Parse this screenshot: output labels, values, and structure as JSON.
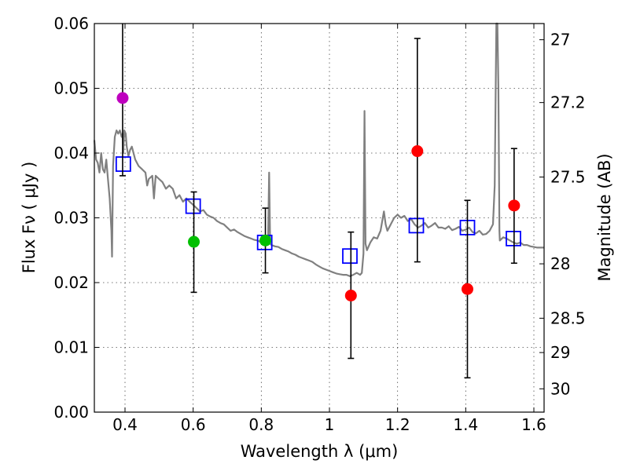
{
  "chart_data": {
    "type": "scatter",
    "title": "",
    "xlabel": "Wavelength  λ (μm)",
    "ylabel": "Flux  Fν  ( μJy )",
    "y2label": "Magnitude (AB)",
    "xlim": [
      0.31,
      1.63
    ],
    "ylim": [
      0.0,
      0.06
    ],
    "grid": true,
    "x_ticks": [
      0.4,
      0.6,
      0.8,
      1.0,
      1.2,
      1.4,
      1.6
    ],
    "x_tick_labels": [
      "0.4",
      "0.6",
      "0.8",
      "1",
      "1.2",
      "1.4",
      "1.6"
    ],
    "y_ticks": [
      0.0,
      0.01,
      0.02,
      0.03,
      0.04,
      0.05,
      0.06
    ],
    "y_tick_labels": [
      "0.00",
      "0.01",
      "0.02",
      "0.03",
      "0.04",
      "0.05",
      "0.06"
    ],
    "y2_ticks": [
      {
        "label": "27",
        "flux": 0.0575
      },
      {
        "label": "27.2",
        "flux": 0.0478
      },
      {
        "label": "27.5",
        "flux": 0.0363
      },
      {
        "label": "28",
        "flux": 0.0229
      },
      {
        "label": "28.5",
        "flux": 0.0145
      },
      {
        "label": "29",
        "flux": 0.0092
      },
      {
        "label": "30",
        "flux": 0.0036
      }
    ],
    "colors": {
      "model": "#808080",
      "magenta": "#bf00bf",
      "green": "#00bf00",
      "red": "#ff0000",
      "square": "#0000ff",
      "errorbar": "#000000"
    },
    "series": [
      {
        "name": "model spectrum",
        "style": "line",
        "color": "#808080",
        "points": [
          [
            0.31,
            0.042
          ],
          [
            0.315,
            0.039
          ],
          [
            0.32,
            0.0385
          ],
          [
            0.325,
            0.037
          ],
          [
            0.33,
            0.04
          ],
          [
            0.335,
            0.0375
          ],
          [
            0.34,
            0.037
          ],
          [
            0.345,
            0.039
          ],
          [
            0.35,
            0.036
          ],
          [
            0.355,
            0.033
          ],
          [
            0.36,
            0.028
          ],
          [
            0.362,
            0.024
          ],
          [
            0.365,
            0.038
          ],
          [
            0.37,
            0.0425
          ],
          [
            0.375,
            0.0435
          ],
          [
            0.38,
            0.043
          ],
          [
            0.385,
            0.0435
          ],
          [
            0.39,
            0.0425
          ],
          [
            0.393,
            0.043
          ],
          [
            0.395,
            0.04
          ],
          [
            0.398,
            0.0435
          ],
          [
            0.402,
            0.043
          ],
          [
            0.405,
            0.041
          ],
          [
            0.41,
            0.0395
          ],
          [
            0.415,
            0.0405
          ],
          [
            0.42,
            0.041
          ],
          [
            0.43,
            0.039
          ],
          [
            0.44,
            0.038
          ],
          [
            0.45,
            0.0375
          ],
          [
            0.46,
            0.037
          ],
          [
            0.465,
            0.035
          ],
          [
            0.47,
            0.036
          ],
          [
            0.48,
            0.0365
          ],
          [
            0.485,
            0.033
          ],
          [
            0.49,
            0.0365
          ],
          [
            0.5,
            0.036
          ],
          [
            0.51,
            0.0355
          ],
          [
            0.52,
            0.0345
          ],
          [
            0.53,
            0.035
          ],
          [
            0.54,
            0.0345
          ],
          [
            0.55,
            0.033
          ],
          [
            0.56,
            0.0335
          ],
          [
            0.57,
            0.0325
          ],
          [
            0.58,
            0.033
          ],
          [
            0.59,
            0.0325
          ],
          [
            0.6,
            0.032
          ],
          [
            0.61,
            0.0315
          ],
          [
            0.62,
            0.031
          ],
          [
            0.63,
            0.0312
          ],
          [
            0.64,
            0.0305
          ],
          [
            0.65,
            0.0302
          ],
          [
            0.66,
            0.03
          ],
          [
            0.67,
            0.0295
          ],
          [
            0.68,
            0.0292
          ],
          [
            0.69,
            0.029
          ],
          [
            0.7,
            0.0285
          ],
          [
            0.71,
            0.028
          ],
          [
            0.72,
            0.0282
          ],
          [
            0.73,
            0.0278
          ],
          [
            0.74,
            0.0275
          ],
          [
            0.75,
            0.0272
          ],
          [
            0.76,
            0.027
          ],
          [
            0.77,
            0.0268
          ],
          [
            0.78,
            0.0266
          ],
          [
            0.79,
            0.0265
          ],
          [
            0.8,
            0.0262
          ],
          [
            0.81,
            0.026
          ],
          [
            0.815,
            0.0262
          ],
          [
            0.82,
            0.027
          ],
          [
            0.823,
            0.037
          ],
          [
            0.826,
            0.026
          ],
          [
            0.83,
            0.0258
          ],
          [
            0.84,
            0.0256
          ],
          [
            0.85,
            0.0255
          ],
          [
            0.86,
            0.0252
          ],
          [
            0.87,
            0.025
          ],
          [
            0.88,
            0.0248
          ],
          [
            0.89,
            0.0245
          ],
          [
            0.9,
            0.0243
          ],
          [
            0.91,
            0.024
          ],
          [
            0.92,
            0.0238
          ],
          [
            0.93,
            0.0236
          ],
          [
            0.94,
            0.0234
          ],
          [
            0.95,
            0.0232
          ],
          [
            0.96,
            0.0228
          ],
          [
            0.97,
            0.0225
          ],
          [
            0.98,
            0.0222
          ],
          [
            0.99,
            0.022
          ],
          [
            1.0,
            0.0218
          ],
          [
            1.01,
            0.0216
          ],
          [
            1.02,
            0.0214
          ],
          [
            1.03,
            0.0213
          ],
          [
            1.04,
            0.0212
          ],
          [
            1.05,
            0.0212
          ],
          [
            1.06,
            0.021
          ],
          [
            1.07,
            0.0212
          ],
          [
            1.08,
            0.0215
          ],
          [
            1.09,
            0.0212
          ],
          [
            1.095,
            0.0215
          ],
          [
            1.1,
            0.0245
          ],
          [
            1.103,
            0.0465
          ],
          [
            1.106,
            0.026
          ],
          [
            1.11,
            0.025
          ],
          [
            1.12,
            0.0262
          ],
          [
            1.13,
            0.027
          ],
          [
            1.14,
            0.0268
          ],
          [
            1.15,
            0.028
          ],
          [
            1.16,
            0.031
          ],
          [
            1.165,
            0.029
          ],
          [
            1.17,
            0.028
          ],
          [
            1.18,
            0.029
          ],
          [
            1.19,
            0.03
          ],
          [
            1.2,
            0.0305
          ],
          [
            1.21,
            0.03
          ],
          [
            1.22,
            0.0303
          ],
          [
            1.23,
            0.0295
          ],
          [
            1.24,
            0.0298
          ],
          [
            1.25,
            0.029
          ],
          [
            1.26,
            0.0285
          ],
          [
            1.27,
            0.0288
          ],
          [
            1.28,
            0.0292
          ],
          [
            1.29,
            0.0285
          ],
          [
            1.3,
            0.0288
          ],
          [
            1.31,
            0.0292
          ],
          [
            1.32,
            0.0285
          ],
          [
            1.33,
            0.0285
          ],
          [
            1.34,
            0.0283
          ],
          [
            1.35,
            0.0287
          ],
          [
            1.36,
            0.0281
          ],
          [
            1.37,
            0.0283
          ],
          [
            1.38,
            0.0286
          ],
          [
            1.39,
            0.028
          ],
          [
            1.4,
            0.0282
          ],
          [
            1.41,
            0.0285
          ],
          [
            1.42,
            0.0278
          ],
          [
            1.43,
            0.0276
          ],
          [
            1.44,
            0.028
          ],
          [
            1.45,
            0.0274
          ],
          [
            1.46,
            0.0275
          ],
          [
            1.47,
            0.028
          ],
          [
            1.48,
            0.029
          ],
          [
            1.485,
            0.035
          ],
          [
            1.49,
            0.06
          ],
          [
            1.493,
            0.06
          ],
          [
            1.496,
            0.05
          ],
          [
            1.499,
            0.028
          ],
          [
            1.5,
            0.0265
          ],
          [
            1.51,
            0.027
          ],
          [
            1.52,
            0.0268
          ],
          [
            1.53,
            0.0265
          ],
          [
            1.54,
            0.0262
          ],
          [
            1.55,
            0.026
          ],
          [
            1.56,
            0.0262
          ],
          [
            1.57,
            0.0258
          ],
          [
            1.58,
            0.0258
          ],
          [
            1.59,
            0.0256
          ],
          [
            1.6,
            0.0255
          ],
          [
            1.61,
            0.0254
          ],
          [
            1.62,
            0.0254
          ],
          [
            1.63,
            0.0254
          ]
        ]
      },
      {
        "name": "model photometry",
        "style": "open-square",
        "color": "#0000ff",
        "points": [
          [
            0.395,
            0.0383
          ],
          [
            0.6,
            0.0318
          ],
          [
            0.81,
            0.0262
          ],
          [
            1.06,
            0.0241
          ],
          [
            1.255,
            0.0288
          ],
          [
            1.405,
            0.0285
          ],
          [
            1.54,
            0.0268
          ]
        ]
      },
      {
        "name": "observed (magenta)",
        "style": "filled-circle",
        "color": "#bf00bf",
        "points": [
          {
            "x": 0.393,
            "y": 0.0485,
            "ylo": 0.0365,
            "yhi": 0.06
          }
        ]
      },
      {
        "name": "observed (green)",
        "style": "filled-circle",
        "color": "#00bf00",
        "points": [
          {
            "x": 0.602,
            "y": 0.0263,
            "ylo": 0.0185,
            "yhi": 0.034
          },
          {
            "x": 0.812,
            "y": 0.0265,
            "ylo": 0.0215,
            "yhi": 0.0315
          }
        ]
      },
      {
        "name": "observed (red)",
        "style": "filled-circle",
        "color": "#ff0000",
        "points": [
          {
            "x": 1.063,
            "y": 0.018,
            "ylo": 0.0083,
            "yhi": 0.0278
          },
          {
            "x": 1.258,
            "y": 0.0403,
            "ylo": 0.0232,
            "yhi": 0.0577
          },
          {
            "x": 1.405,
            "y": 0.019,
            "ylo": 0.0053,
            "yhi": 0.0327
          },
          {
            "x": 1.542,
            "y": 0.0319,
            "ylo": 0.023,
            "yhi": 0.0407
          }
        ]
      }
    ]
  }
}
